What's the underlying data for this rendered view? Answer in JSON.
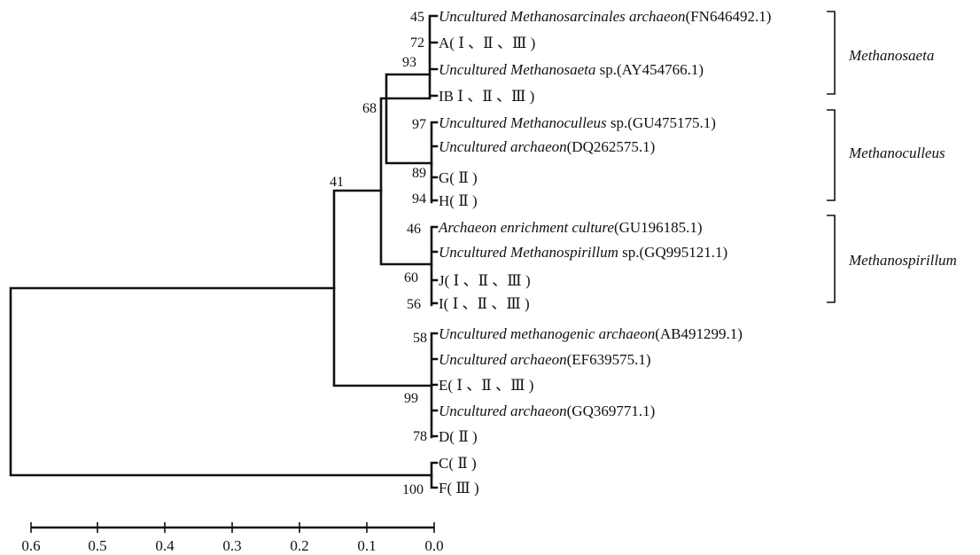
{
  "tree": {
    "leaves": [
      {
        "italic": "Uncultured Methanosarcinales archaeon",
        "plain": "(FN646492.1)"
      },
      {
        "italic": "",
        "plain": "A( Ⅰ 、Ⅱ 、Ⅲ )"
      },
      {
        "italic": "Uncultured Methanosaeta",
        "plain": " sp.(AY454766.1)"
      },
      {
        "italic": "",
        "plain": "IB Ⅰ 、Ⅱ 、Ⅲ )"
      },
      {
        "italic": "Uncultured Methanoculleus",
        "plain": " sp.(GU475175.1)"
      },
      {
        "italic": "Uncultured archaeon",
        "plain": "(DQ262575.1)"
      },
      {
        "italic": "",
        "plain": "G( Ⅱ )"
      },
      {
        "italic": "",
        "plain": "H( Ⅱ )"
      },
      {
        "italic": "Archaeon enrichment culture",
        "plain": "(GU196185.1)"
      },
      {
        "italic": "Uncultured Methanospirillum",
        "plain": " sp.(GQ995121.1)"
      },
      {
        "italic": "",
        "plain": "J( Ⅰ 、Ⅱ 、Ⅲ )"
      },
      {
        "italic": "",
        "plain": "I( Ⅰ 、Ⅱ 、Ⅲ )"
      },
      {
        "italic": "Uncultured methanogenic archaeon",
        "plain": "(AB491299.1)"
      },
      {
        "italic": "Uncultured archaeon",
        "plain": "(EF639575.1)"
      },
      {
        "italic": "",
        "plain": "E( Ⅰ 、Ⅱ 、Ⅲ )"
      },
      {
        "italic": "Uncultured archaeon",
        "plain": "(GQ369771.1)"
      },
      {
        "italic": "",
        "plain": "D( Ⅱ )"
      },
      {
        "italic": "",
        "plain": "C( Ⅱ )"
      },
      {
        "italic": "",
        "plain": "F( Ⅲ )"
      }
    ],
    "bootstrap": [
      "45",
      "72",
      "93",
      "97",
      "89",
      "94",
      "68",
      "46",
      "60",
      "56",
      "41",
      "58",
      "99",
      "78",
      "100"
    ],
    "clades": [
      "Methanosaeta",
      "Methanoculleus",
      "Methanospirillum"
    ]
  },
  "scale_axis": {
    "ticks": [
      "0.6",
      "0.5",
      "0.4",
      "0.3",
      "0.2",
      "0.1",
      "0.0"
    ]
  }
}
